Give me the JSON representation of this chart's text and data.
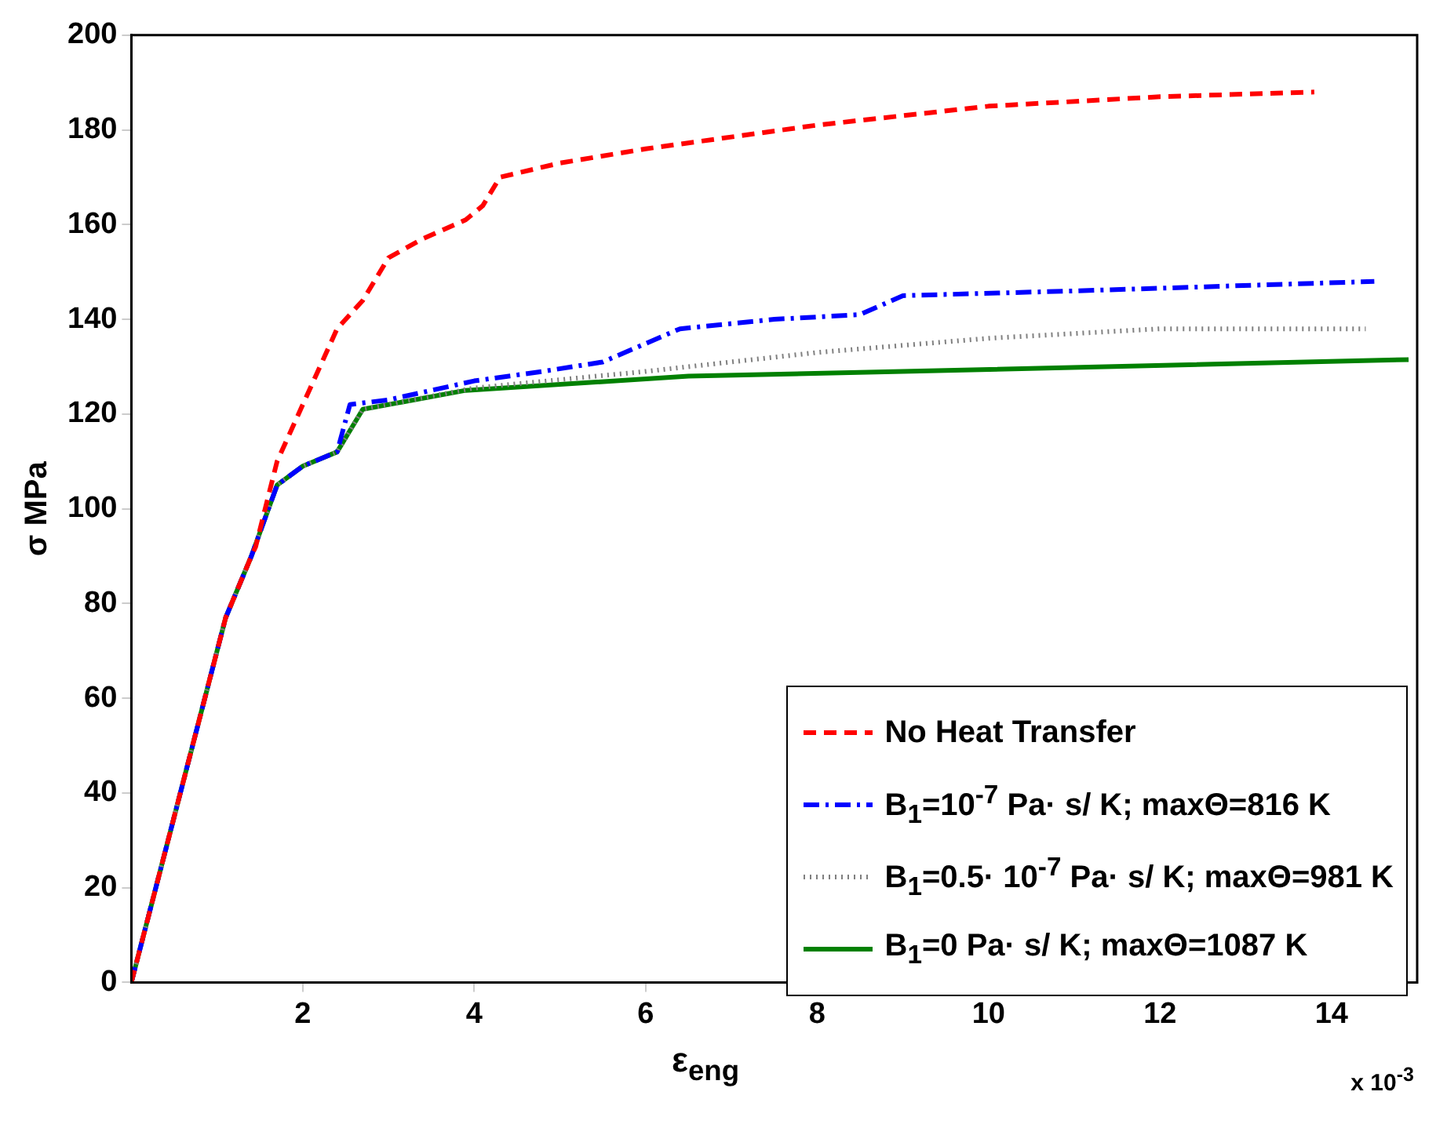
{
  "chart_data": {
    "type": "line",
    "xlabel": "ε$_{eng}$",
    "ylabel": "σ MPa",
    "annotations": [
      "x 10$^{-3}$"
    ],
    "xlim": [
      0,
      15
    ],
    "xticks": [
      2,
      4,
      6,
      8,
      10,
      12,
      14
    ],
    "ylim": [
      0,
      200
    ],
    "yticks": [
      0,
      20,
      40,
      60,
      80,
      100,
      120,
      140,
      160,
      180,
      200
    ],
    "grid": false,
    "legend": "bottom right",
    "series": [
      {
        "name": "No Heat Transfer",
        "color": "#ff0000",
        "line_style": "dashed",
        "x": [
          0,
          1,
          1.1,
          1.4,
          1.45,
          1.7,
          2,
          2.4,
          2.7,
          3,
          3.4,
          3.9,
          4.1,
          4.3,
          5,
          6,
          8,
          10,
          12,
          13.8
        ],
        "values": [
          0,
          70,
          77,
          90,
          92,
          110,
          122,
          138,
          144,
          153,
          157,
          161,
          164,
          170,
          173,
          176,
          181,
          185,
          187,
          188
        ]
      },
      {
        "name": "B$_{1}$=10$^{-7}$ Pa· s/ K; maxΘ=816 K",
        "color": "#0000ff",
        "line_style": "dashdot",
        "x": [
          0,
          1,
          1.1,
          1.4,
          1.5,
          1.7,
          2,
          2.4,
          2.55,
          3,
          4,
          4.8,
          5.5,
          6.4,
          7.5,
          8.5,
          9,
          11,
          14.5
        ],
        "values": [
          0,
          70,
          77,
          90,
          95,
          105,
          109,
          112,
          122,
          123,
          127,
          129,
          131,
          138,
          140,
          141,
          145,
          146,
          148
        ]
      },
      {
        "name": "B$_{1}$=0.5· 10$^{-7}$ Pa· s/ K; maxΘ=981 K",
        "color": "#808080",
        "line_style": "dotted",
        "x": [
          0,
          1,
          1.1,
          1.4,
          1.5,
          1.7,
          2,
          2.4,
          2.5,
          2.7,
          4,
          6,
          8,
          10,
          12,
          14.4
        ],
        "values": [
          0,
          70,
          77,
          90,
          95,
          105,
          109,
          112,
          115,
          121,
          125.5,
          129,
          133,
          136,
          138,
          138
        ]
      },
      {
        "name": "B$_{1}$=0 Pa· s/ K; maxΘ=1087 K",
        "color": "#008000",
        "line_style": "solid",
        "x": [
          0,
          1,
          1.1,
          1.4,
          1.5,
          1.7,
          2,
          2.4,
          2.5,
          2.7,
          3.9,
          6.5,
          9,
          14.9
        ],
        "values": [
          0,
          70,
          77,
          90,
          95,
          105,
          109,
          112,
          115,
          121,
          125,
          128,
          129,
          131.5
        ]
      }
    ]
  }
}
